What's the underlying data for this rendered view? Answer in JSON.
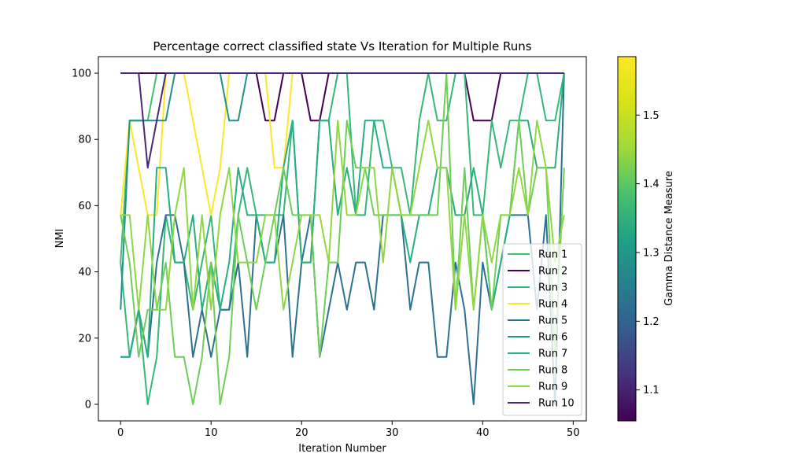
{
  "chart_data": {
    "type": "line",
    "title": "Percentage correct classified state Vs Iteration for Multiple Runs",
    "xlabel": "Iteration Number",
    "ylabel": "NMI",
    "xlim": [
      -2.45,
      51.45
    ],
    "ylim": [
      -5,
      105
    ],
    "xticks": [
      0,
      10,
      20,
      30,
      40,
      50
    ],
    "yticks": [
      0,
      20,
      40,
      60,
      80,
      100
    ],
    "grid": false,
    "legend_position": "lower-right",
    "colorbar": {
      "label": "Gamma Distance Measure",
      "range": [
        1.055,
        1.585
      ],
      "ticks": [
        "1.1",
        "1.2",
        "1.3",
        "1.4",
        "1.5"
      ],
      "tick_values": [
        1.1,
        1.2,
        1.3,
        1.4,
        1.5
      ]
    },
    "series": [
      {
        "name": "Run 1",
        "color": "#45bd6f",
        "values": [
          42.86,
          85.71,
          85.71,
          85.71,
          100,
          100,
          100,
          100,
          100,
          100,
          100,
          100,
          100,
          100,
          100,
          100,
          100,
          100,
          100,
          100,
          100,
          100,
          100,
          100,
          100,
          100,
          100,
          100,
          100,
          100,
          100,
          100,
          100,
          100,
          100,
          100,
          100,
          100,
          100,
          100,
          100,
          100,
          100,
          100,
          100,
          100,
          100,
          100,
          100,
          100
        ]
      },
      {
        "name": "Run 2",
        "color": "#440154",
        "values": [
          100,
          100,
          100,
          100,
          100,
          100,
          100,
          100,
          100,
          100,
          100,
          100,
          100,
          100,
          100,
          100,
          85.71,
          85.71,
          100,
          100,
          100,
          85.71,
          85.71,
          100,
          100,
          100,
          100,
          100,
          100,
          100,
          100,
          100,
          100,
          100,
          100,
          100,
          100,
          100,
          100,
          85.71,
          85.71,
          85.71,
          100,
          100,
          100,
          100,
          100,
          100,
          100,
          100
        ]
      },
      {
        "name": "Run 3",
        "color": "#35b779",
        "values": [
          42.86,
          14.29,
          28.57,
          0,
          14.29,
          57.14,
          42.86,
          42.86,
          28.57,
          42.86,
          57.14,
          28.57,
          28.57,
          57.14,
          71.43,
          57.14,
          57.14,
          57.14,
          57.14,
          85.71,
          42.86,
          42.86,
          85.71,
          85.71,
          100,
          100,
          57.14,
          57.14,
          85.71,
          85.71,
          71.43,
          71.43,
          57.14,
          85.71,
          100,
          85.71,
          85.71,
          100,
          100,
          57.14,
          57.14,
          85.71,
          71.43,
          85.71,
          85.71,
          100,
          100,
          85.71,
          85.71,
          100
        ]
      },
      {
        "name": "Run 4",
        "color": "#fde725",
        "values": [
          57.14,
          85.71,
          71.43,
          57.14,
          57.14,
          100,
          100,
          100,
          85.71,
          71.43,
          57.14,
          71.43,
          100,
          100,
          100,
          100,
          100,
          71.43,
          71.43,
          100,
          100,
          100,
          100,
          100,
          100,
          100,
          100,
          100,
          100,
          100,
          100,
          100,
          100,
          100,
          100,
          100,
          100,
          100,
          100,
          100,
          100,
          100,
          100,
          100,
          100,
          100,
          100,
          100,
          100,
          100
        ]
      },
      {
        "name": "Run 5",
        "color": "#2c728e",
        "values": [
          14.29,
          14.29,
          28.57,
          14.29,
          42.86,
          57.14,
          57.14,
          42.86,
          14.29,
          28.57,
          14.29,
          28.57,
          28.57,
          42.86,
          14.29,
          57.14,
          42.86,
          42.86,
          57.14,
          14.29,
          42.86,
          57.14,
          14.29,
          28.57,
          42.86,
          28.57,
          42.86,
          42.86,
          28.57,
          57.14,
          57.14,
          57.14,
          28.57,
          42.86,
          42.86,
          14.29,
          14.29,
          42.86,
          28.57,
          0,
          42.86,
          28.57,
          42.86,
          57.14,
          57.14,
          57.14,
          28.57,
          57.14,
          0,
          100
        ]
      },
      {
        "name": "Run 6",
        "color": "#21918c",
        "values": [
          28.57,
          85.71,
          85.71,
          85.71,
          85.71,
          85.71,
          100,
          100,
          100,
          100,
          100,
          100,
          85.71,
          85.71,
          100,
          100,
          100,
          100,
          100,
          100,
          100,
          100,
          100,
          100,
          100,
          100,
          100,
          100,
          100,
          100,
          100,
          100,
          100,
          100,
          100,
          100,
          100,
          100,
          100,
          100,
          100,
          100,
          100,
          100,
          100,
          100,
          100,
          100,
          100,
          100
        ]
      },
      {
        "name": "Run 7",
        "color": "#28ae80",
        "values": [
          14.29,
          14.29,
          28.57,
          14.29,
          71.43,
          71.43,
          42.86,
          42.86,
          57.14,
          28.57,
          42.86,
          28.57,
          42.86,
          71.43,
          57.14,
          57.14,
          42.86,
          42.86,
          71.43,
          85.71,
          42.86,
          42.86,
          85.71,
          85.71,
          57.14,
          71.43,
          57.14,
          85.71,
          85.71,
          71.43,
          71.43,
          57.14,
          42.86,
          57.14,
          57.14,
          71.43,
          71.43,
          57.14,
          57.14,
          71.43,
          57.14,
          28.57,
          42.86,
          57.14,
          85.71,
          85.71,
          71.43,
          71.43,
          71.43,
          100
        ]
      },
      {
        "name": "Run 8",
        "color": "#6ece58",
        "values": [
          57.14,
          42.86,
          14.29,
          28.57,
          28.57,
          42.86,
          14.29,
          14.29,
          0,
          14.29,
          42.86,
          0,
          14.29,
          57.14,
          42.86,
          28.57,
          42.86,
          57.14,
          71.43,
          57.14,
          57.14,
          57.14,
          14.29,
          42.86,
          42.86,
          85.71,
          71.43,
          71.43,
          57.14,
          57.14,
          57.14,
          57.14,
          57.14,
          57.14,
          57.14,
          57.14,
          100,
          28.57,
          71.43,
          28.57,
          57.14,
          28.57,
          57.14,
          57.14,
          85.71,
          57.14,
          71.43,
          71.43,
          14.29,
          71.43
        ]
      },
      {
        "name": "Run 9",
        "color": "#90d743",
        "values": [
          57.14,
          57.14,
          28.57,
          57.14,
          28.57,
          28.57,
          57.14,
          71.43,
          28.57,
          57.14,
          28.57,
          57.14,
          71.43,
          42.86,
          42.86,
          42.86,
          57.14,
          57.14,
          28.57,
          42.86,
          57.14,
          57.14,
          57.14,
          42.86,
          85.71,
          57.14,
          57.14,
          71.43,
          71.43,
          42.86,
          71.43,
          57.14,
          57.14,
          71.43,
          85.71,
          71.43,
          71.43,
          28.57,
          57.14,
          28.57,
          57.14,
          42.86,
          57.14,
          57.14,
          71.43,
          57.14,
          85.71,
          71.43,
          42.86,
          57.14
        ]
      },
      {
        "name": "Run 10",
        "color": "#482878",
        "values": [
          100,
          100,
          100,
          71.43,
          85.71,
          100,
          100,
          100,
          100,
          100,
          100,
          100,
          100,
          100,
          100,
          100,
          100,
          100,
          100,
          100,
          100,
          100,
          100,
          100,
          100,
          100,
          100,
          100,
          100,
          100,
          100,
          100,
          100,
          100,
          100,
          100,
          100,
          100,
          100,
          100,
          100,
          100,
          100,
          100,
          100,
          100,
          100,
          100,
          100,
          100
        ]
      }
    ]
  }
}
